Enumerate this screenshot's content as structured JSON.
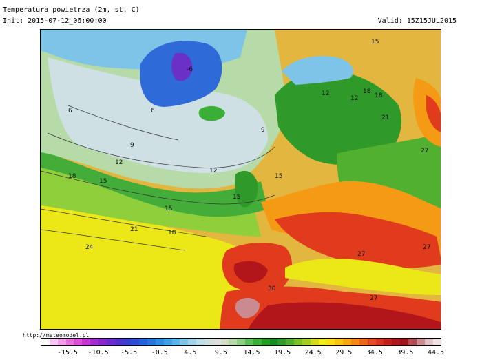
{
  "header": {
    "title": "Temperatura powietrza (2m, st. C)",
    "init": "Init: 2015-07-12_06:00:00",
    "valid": "Valid: 15Z15JUL2015"
  },
  "credit": "http://meteomodel.pl",
  "legend": {
    "labels": [
      "-15.5",
      "-10.5",
      "-5.5",
      "-0.5",
      "4.5",
      "9.5",
      "14.5",
      "19.5",
      "24.5",
      "29.5",
      "34.5",
      "39.5",
      "44.5"
    ],
    "colors": [
      "#ffffff",
      "#f7c6f2",
      "#f09ee9",
      "#e873e0",
      "#dc4fd8",
      "#c433d3",
      "#a52ad0",
      "#8a28cf",
      "#6e2dd0",
      "#5333cf",
      "#3c3fd0",
      "#2f4fd6",
      "#2863dc",
      "#2978e2",
      "#2e8ee6",
      "#3fa3e9",
      "#58b6ea",
      "#7dc6e8",
      "#9fd2e6",
      "#bcdbe6",
      "#d2e0e4",
      "#dedede",
      "#cfd9c5",
      "#b4d8a8",
      "#8fce85",
      "#5fbf5a",
      "#3aaf35",
      "#209b20",
      "#1a8c24",
      "#2d9a2a",
      "#52b030",
      "#7bc32c",
      "#a5d124",
      "#cfdd1c",
      "#ecea16",
      "#fadd14",
      "#fbc512",
      "#f9a814",
      "#f48a16",
      "#ee6a1a",
      "#e54a1c",
      "#d8321c",
      "#c4221c",
      "#ae181a",
      "#9c1418",
      "#b34d55",
      "#c98b90",
      "#dcc0c2",
      "#eee2e3"
    ]
  },
  "map": {
    "contour_labels": [
      "-6",
      "6",
      "9",
      "12",
      "12",
      "9",
      "6",
      "12",
      "15",
      "18",
      "18",
      "15",
      "12",
      "15",
      "15",
      "18",
      "21",
      "24",
      "21",
      "27",
      "27",
      "27",
      "27",
      "30",
      "18",
      "15"
    ],
    "colors": {
      "ocean_warm": "#d9d82a",
      "ocean_yellow": "#ece716",
      "ocean_green": "#8fcf3c",
      "ocean_mid": "#44ad3a",
      "ocean_cool": "#b6dba8",
      "ice_light": "#cfe0e4",
      "ice_blue": "#7ec4e8",
      "ice_deep": "#2e6ad8",
      "ice_core": "#6a30c8",
      "land_green": "#2f9a2a",
      "land_hot": "#e03b1c",
      "land_veryhot": "#b3161a",
      "land_orange": "#f59a14"
    }
  }
}
